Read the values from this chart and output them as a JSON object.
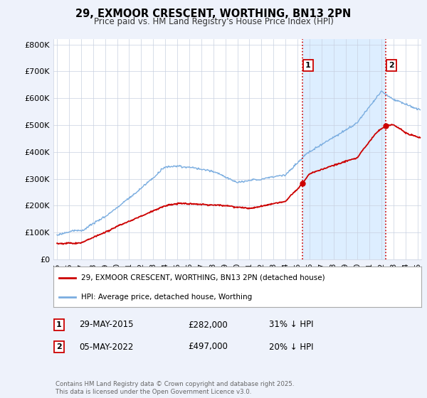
{
  "title": "29, EXMOOR CRESCENT, WORTHING, BN13 2PN",
  "subtitle": "Price paid vs. HM Land Registry's House Price Index (HPI)",
  "ylabel_ticks": [
    "£0",
    "£100K",
    "£200K",
    "£300K",
    "£400K",
    "£500K",
    "£600K",
    "£700K",
    "£800K"
  ],
  "ytick_values": [
    0,
    100000,
    200000,
    300000,
    400000,
    500000,
    600000,
    700000,
    800000
  ],
  "ylim": [
    0,
    820000
  ],
  "xlim_start": 1994.7,
  "xlim_end": 2025.3,
  "marker1_x": 2015.41,
  "marker1_y": 282000,
  "marker2_x": 2022.34,
  "marker2_y": 497000,
  "marker1_label": "1",
  "marker2_label": "2",
  "marker1_date": "29-MAY-2015",
  "marker1_price": "£282,000",
  "marker1_hpi": "31% ↓ HPI",
  "marker2_date": "05-MAY-2022",
  "marker2_price": "£497,000",
  "marker2_hpi": "20% ↓ HPI",
  "legend_line1": "29, EXMOOR CRESCENT, WORTHING, BN13 2PN (detached house)",
  "legend_line2": "HPI: Average price, detached house, Worthing",
  "footer": "Contains HM Land Registry data © Crown copyright and database right 2025.\nThis data is licensed under the Open Government Licence v3.0.",
  "line_color_red": "#cc0000",
  "line_color_blue": "#7aade0",
  "shade_color": "#ddeeff",
  "background_color": "#eef2fb",
  "plot_bg": "#ffffff",
  "grid_color": "#c8d0e0",
  "vline_color": "#cc0000",
  "vline_style": "--",
  "xticks": [
    1995,
    1996,
    1997,
    1998,
    1999,
    2000,
    2001,
    2002,
    2003,
    2004,
    2005,
    2006,
    2007,
    2008,
    2009,
    2010,
    2011,
    2012,
    2013,
    2014,
    2015,
    2016,
    2017,
    2018,
    2019,
    2020,
    2021,
    2022,
    2023,
    2024,
    2025
  ]
}
